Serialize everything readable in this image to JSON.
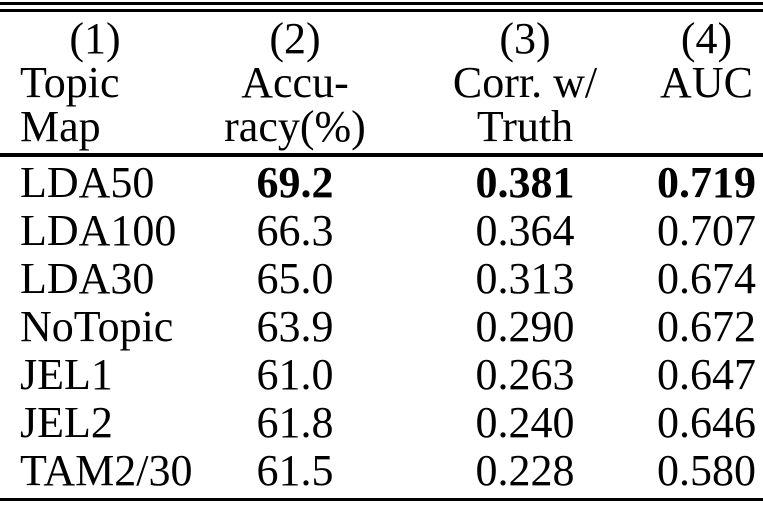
{
  "table": {
    "header": {
      "numbers": [
        "(1)",
        "(2)",
        "(3)",
        "(4)"
      ],
      "title_line1": [
        "Topic",
        "Accu-",
        "Corr. w/",
        "AUC"
      ],
      "title_line2": [
        "Map",
        "racy(%)",
        "Truth",
        ""
      ]
    },
    "rows": [
      {
        "map": "LDA50",
        "accuracy": "69.2",
        "corr": "0.381",
        "auc": "0.719"
      },
      {
        "map": "LDA100",
        "accuracy": "66.3",
        "corr": "0.364",
        "auc": "0.707"
      },
      {
        "map": "LDA30",
        "accuracy": "65.0",
        "corr": "0.313",
        "auc": "0.674"
      },
      {
        "map": "NoTopic",
        "accuracy": "63.9",
        "corr": "0.290",
        "auc": "0.672"
      },
      {
        "map": "JEL1",
        "accuracy": "61.0",
        "corr": "0.263",
        "auc": "0.647"
      },
      {
        "map": "JEL2",
        "accuracy": "61.8",
        "corr": "0.240",
        "auc": "0.646"
      },
      {
        "map": "TAM2/30",
        "accuracy": "61.5",
        "corr": "0.228",
        "auc": "0.580"
      }
    ],
    "emphasis": {
      "bold_values_row": "LDA50"
    },
    "colors": {
      "text": "#000000",
      "rule": "#000000",
      "background": "#ffffff"
    }
  }
}
